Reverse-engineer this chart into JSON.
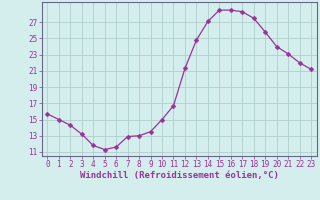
{
  "x": [
    0,
    1,
    2,
    3,
    4,
    5,
    6,
    7,
    8,
    9,
    10,
    11,
    12,
    13,
    14,
    15,
    16,
    17,
    18,
    19,
    20,
    21,
    22,
    23
  ],
  "y": [
    15.7,
    15.0,
    14.3,
    13.2,
    11.8,
    11.3,
    11.6,
    12.9,
    13.0,
    13.5,
    15.0,
    16.7,
    21.3,
    24.8,
    27.1,
    28.5,
    28.5,
    28.3,
    27.5,
    25.8,
    24.0,
    23.1,
    22.0,
    21.2
  ],
  "line_color": "#993399",
  "marker": "D",
  "markersize": 2.5,
  "bg_color": "#d4eeed",
  "grid_color": "#b0cecc",
  "xlabel": "Windchill (Refroidissement éolien,°C)",
  "ylim": [
    10.5,
    29.5
  ],
  "xlim": [
    -0.5,
    23.5
  ],
  "yticks": [
    11,
    13,
    15,
    17,
    19,
    21,
    23,
    25,
    27
  ],
  "xticks": [
    0,
    1,
    2,
    3,
    4,
    5,
    6,
    7,
    8,
    9,
    10,
    11,
    12,
    13,
    14,
    15,
    16,
    17,
    18,
    19,
    20,
    21,
    22,
    23
  ],
  "tick_color": "#993399",
  "label_color": "#993399",
  "spine_color": "#666688",
  "tick_fontsize": 5.5,
  "xlabel_fontsize": 6.5
}
